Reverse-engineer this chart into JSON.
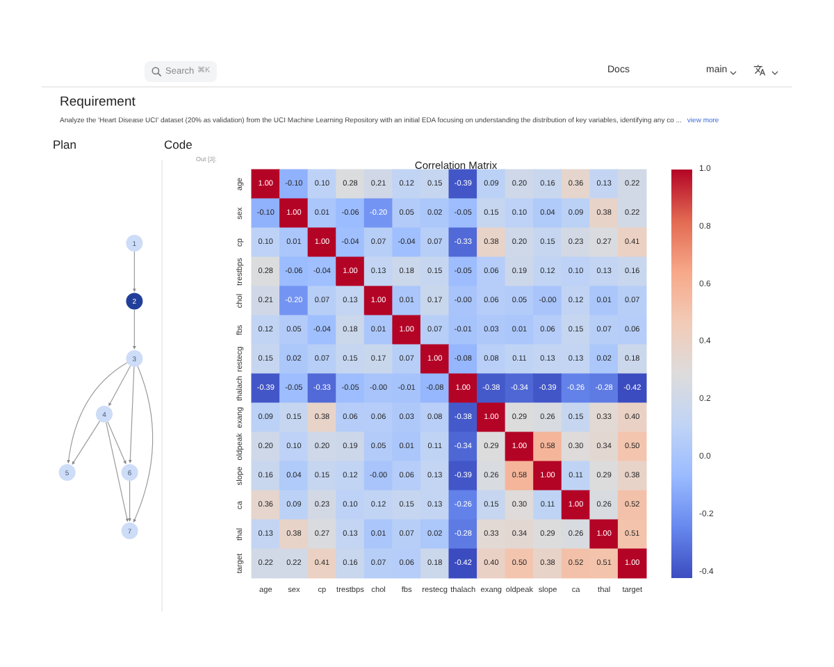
{
  "chart_data": {
    "type": "heatmap",
    "title": "Correlation Matrix",
    "categories": [
      "age",
      "sex",
      "cp",
      "trestbps",
      "chol",
      "fbs",
      "restecg",
      "thalach",
      "exang",
      "oldpeak",
      "slope",
      "ca",
      "thal",
      "target"
    ],
    "y_categories": [
      "age",
      "sex",
      "cp",
      "trestbps",
      "chol",
      "fbs",
      "restecg",
      "thalach",
      "exang",
      "oldpeak",
      "slope",
      "ca",
      "thal",
      "target"
    ],
    "cells": [
      [
        1,
        -0.1,
        0.1,
        0.28,
        0.21,
        0.12,
        0.15,
        -0.39,
        0.09,
        0.2,
        0.16,
        0.36,
        0.13,
        0.22
      ],
      [
        -0.1,
        1,
        0.01,
        -0.06,
        -0.2,
        0.05,
        0.02,
        -0.05,
        0.15,
        0.1,
        0.04,
        0.09,
        0.38,
        0.22
      ],
      [
        0.1,
        0.01,
        1,
        -0.04,
        0.07,
        -0.04,
        0.07,
        -0.33,
        0.38,
        0.2,
        0.15,
        0.23,
        0.27,
        0.41
      ],
      [
        0.28,
        -0.06,
        -0.04,
        1,
        0.13,
        0.18,
        0.15,
        -0.05,
        0.06,
        0.19,
        0.12,
        0.1,
        0.13,
        0.16
      ],
      [
        0.21,
        -0.2,
        0.07,
        0.13,
        1,
        0.01,
        0.17,
        0,
        0.06,
        0.05,
        0,
        0.12,
        0.01,
        0.07
      ],
      [
        0.12,
        0.05,
        -0.04,
        0.18,
        0.01,
        1,
        0.07,
        -0.01,
        0.03,
        0.01,
        0.06,
        0.15,
        0.07,
        0.06
      ],
      [
        0.15,
        0.02,
        0.07,
        0.15,
        0.17,
        0.07,
        1,
        -0.08,
        0.08,
        0.11,
        0.13,
        0.13,
        0.02,
        0.18
      ],
      [
        -0.39,
        -0.05,
        -0.33,
        -0.05,
        0,
        -0.01,
        -0.08,
        1,
        -0.38,
        -0.34,
        -0.39,
        -0.26,
        -0.28,
        -0.42
      ],
      [
        0.09,
        0.15,
        0.38,
        0.06,
        0.06,
        0.03,
        0.08,
        -0.38,
        1,
        0.29,
        0.26,
        0.15,
        0.33,
        0.4
      ],
      [
        0.2,
        0.1,
        0.2,
        0.19,
        0.05,
        0.01,
        0.11,
        -0.34,
        0.29,
        1,
        0.58,
        0.3,
        0.34,
        0.5
      ],
      [
        0.16,
        0.04,
        0.15,
        0.12,
        0,
        0.06,
        0.13,
        -0.39,
        0.26,
        0.58,
        1,
        0.11,
        0.29,
        0.38
      ],
      [
        0.36,
        0.09,
        0.23,
        0.1,
        0.12,
        0.15,
        0.13,
        -0.26,
        0.15,
        0.3,
        0.11,
        1,
        0.26,
        0.52
      ],
      [
        0.13,
        0.38,
        0.27,
        0.13,
        0.01,
        0.07,
        0.02,
        -0.28,
        0.33,
        0.34,
        0.29,
        0.26,
        1,
        0.51
      ],
      [
        0.22,
        0.22,
        0.41,
        0.16,
        0.07,
        0.06,
        0.18,
        -0.42,
        0.4,
        0.5,
        0.38,
        0.52,
        0.51,
        1
      ]
    ],
    "cell_labels": [
      [
        "1.00",
        "-0.10",
        "0.10",
        "0.28",
        "0.21",
        "0.12",
        "0.15",
        "-0.39",
        "0.09",
        "0.20",
        "0.16",
        "0.36",
        "0.13",
        "0.22"
      ],
      [
        "-0.10",
        "1.00",
        "0.01",
        "-0.06",
        "-0.20",
        "0.05",
        "0.02",
        "-0.05",
        "0.15",
        "0.10",
        "0.04",
        "0.09",
        "0.38",
        "0.22"
      ],
      [
        "0.10",
        "0.01",
        "1.00",
        "-0.04",
        "0.07",
        "-0.04",
        "0.07",
        "-0.33",
        "0.38",
        "0.20",
        "0.15",
        "0.23",
        "0.27",
        "0.41"
      ],
      [
        "0.28",
        "-0.06",
        "-0.04",
        "1.00",
        "0.13",
        "0.18",
        "0.15",
        "-0.05",
        "0.06",
        "0.19",
        "0.12",
        "0.10",
        "0.13",
        "0.16"
      ],
      [
        "0.21",
        "-0.20",
        "0.07",
        "0.13",
        "1.00",
        "0.01",
        "0.17",
        "-0.00",
        "0.06",
        "0.05",
        "-0.00",
        "0.12",
        "0.01",
        "0.07"
      ],
      [
        "0.12",
        "0.05",
        "-0.04",
        "0.18",
        "0.01",
        "1.00",
        "0.07",
        "-0.01",
        "0.03",
        "0.01",
        "0.06",
        "0.15",
        "0.07",
        "0.06"
      ],
      [
        "0.15",
        "0.02",
        "0.07",
        "0.15",
        "0.17",
        "0.07",
        "1.00",
        "-0.08",
        "0.08",
        "0.11",
        "0.13",
        "0.13",
        "0.02",
        "0.18"
      ],
      [
        "-0.39",
        "-0.05",
        "-0.33",
        "-0.05",
        "-0.00",
        "-0.01",
        "-0.08",
        "1.00",
        "-0.38",
        "-0.34",
        "-0.39",
        "-0.26",
        "-0.28",
        "-0.42"
      ],
      [
        "0.09",
        "0.15",
        "0.38",
        "0.06",
        "0.06",
        "0.03",
        "0.08",
        "-0.38",
        "1.00",
        "0.29",
        "0.26",
        "0.15",
        "0.33",
        "0.40"
      ],
      [
        "0.20",
        "0.10",
        "0.20",
        "0.19",
        "0.05",
        "0.01",
        "0.11",
        "-0.34",
        "0.29",
        "1.00",
        "0.58",
        "0.30",
        "0.34",
        "0.50"
      ],
      [
        "0.16",
        "0.04",
        "0.15",
        "0.12",
        "-0.00",
        "0.06",
        "0.13",
        "-0.39",
        "0.26",
        "0.58",
        "1.00",
        "0.11",
        "0.29",
        "0.38"
      ],
      [
        "0.36",
        "0.09",
        "0.23",
        "0.10",
        "0.12",
        "0.15",
        "0.13",
        "-0.26",
        "0.15",
        "0.30",
        "0.11",
        "1.00",
        "0.26",
        "0.52"
      ],
      [
        "0.13",
        "0.38",
        "0.27",
        "0.13",
        "0.01",
        "0.07",
        "0.02",
        "-0.28",
        "0.33",
        "0.34",
        "0.29",
        "0.26",
        "1.00",
        "0.51"
      ],
      [
        "0.22",
        "0.22",
        "0.41",
        "0.16",
        "0.07",
        "0.06",
        "0.18",
        "-0.42",
        "0.40",
        "0.50",
        "0.38",
        "0.52",
        "0.51",
        "1.00"
      ]
    ],
    "clim": [
      -0.42,
      1
    ],
    "cticks": [
      {
        "value": 1,
        "label": "1.0"
      },
      0.8,
      0.6,
      0.4,
      0.2,
      {
        "value": 0,
        "label": "0.0"
      },
      -0.2,
      -0.4
    ],
    "annotations": [
      "Search",
      "⌘K",
      "Docs",
      "main",
      "Requirement",
      "Analyze the 'Heart Disease UCI' dataset (20% as validation) from the UCI Machine Learning Repository with an initial EDA focusing on understanding the distribution of key variables, identifying any co ...",
      "view more",
      "Plan",
      "Code",
      "Out [3]:",
      "1",
      "2",
      "3",
      "4",
      "5",
      "6",
      "7"
    ]
  }
}
